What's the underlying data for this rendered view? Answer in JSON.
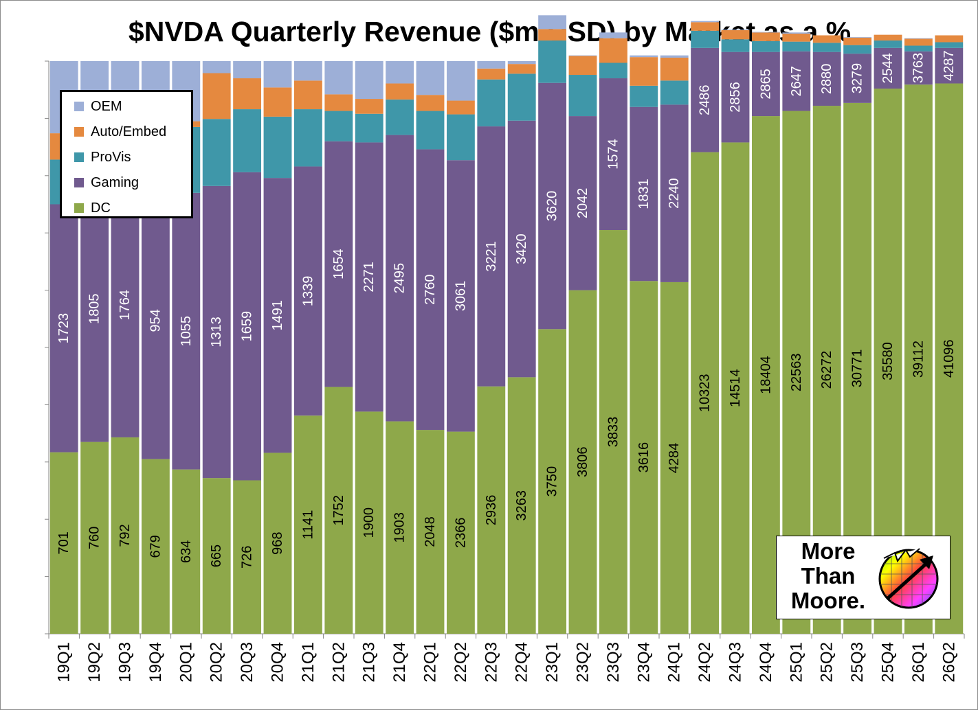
{
  "chart_data": {
    "type": "bar",
    "stacked": true,
    "normalized_percent": true,
    "title": "$NVDA Quarterly Revenue ($m USD) by Market as a %",
    "xlabel": "",
    "ylabel": "",
    "ylim": [
      0,
      100
    ],
    "grid": false,
    "legend_position": "top-left",
    "categories": [
      "19Q1",
      "19Q2",
      "19Q3",
      "19Q4",
      "20Q1",
      "20Q2",
      "20Q3",
      "20Q4",
      "21Q1",
      "21Q2",
      "21Q3",
      "21Q4",
      "22Q1",
      "22Q2",
      "22Q3",
      "22Q4",
      "23Q1",
      "23Q2",
      "23Q3",
      "23Q4",
      "24Q1",
      "24Q2",
      "24Q3",
      "24Q4",
      "25Q1",
      "25Q2",
      "25Q3",
      "25Q4",
      "26Q1",
      "26Q2"
    ],
    "series": [
      {
        "name": "DC",
        "color": "#8ea84a",
        "label_values": [
          701,
          760,
          792,
          679,
          634,
          665,
          726,
          968,
          1141,
          1752,
          1900,
          1903,
          2048,
          2366,
          2936,
          3263,
          3750,
          3806,
          3833,
          3616,
          4284,
          10323,
          14514,
          18404,
          22563,
          26272,
          30771,
          35580,
          39112,
          41096
        ],
        "percent": [
          31.7,
          33.5,
          34.3,
          30.5,
          28.7,
          27.2,
          26.8,
          31.6,
          38.1,
          43.1,
          38.8,
          37.1,
          35.6,
          35.3,
          43.2,
          44.8,
          53.2,
          60.0,
          70.5,
          61.6,
          61.4,
          84.1,
          85.8,
          90.4,
          91.3,
          92.2,
          92.7,
          95.2,
          95.9,
          96.1
        ]
      },
      {
        "name": "Gaming",
        "color": "#705a8e",
        "label_values": [
          1723,
          1805,
          1764,
          954,
          1055,
          1313,
          1659,
          1491,
          1339,
          1654,
          2271,
          2495,
          2760,
          3061,
          3221,
          3420,
          3620,
          2042,
          1574,
          1831,
          2240,
          2486,
          2856,
          2865,
          2647,
          2880,
          3279,
          2544,
          3763,
          4287
        ],
        "percent": [
          43.3,
          46.5,
          46.2,
          48.4,
          48.3,
          51.0,
          53.8,
          48.0,
          43.5,
          42.9,
          47.0,
          50.0,
          49.0,
          47.4,
          45.4,
          44.8,
          43.0,
          30.4,
          26.5,
          30.4,
          31.0,
          18.2,
          15.8,
          11.2,
          10.4,
          9.4,
          8.6,
          7.1,
          5.8,
          6.2
        ]
      },
      {
        "name": "ProVis",
        "color": "#3f97a9",
        "label_values": [],
        "percent": [
          7.8,
          8.3,
          8.9,
          8.3,
          11.5,
          11.7,
          11.0,
          10.7,
          10.0,
          5.3,
          5.0,
          6.2,
          6.7,
          8.0,
          8.2,
          8.2,
          7.4,
          7.2,
          2.7,
          3.7,
          4.2,
          3.0,
          2.2,
          1.9,
          1.7,
          1.6,
          1.5,
          1.3,
          1.0,
          1.0
        ]
      },
      {
        "name": "Auto/Embed",
        "color": "#e5893f",
        "label_values": [],
        "percent": [
          4.6,
          2.0,
          0.7,
          0.4,
          1.0,
          8.0,
          5.4,
          5.1,
          5.0,
          2.9,
          2.6,
          2.8,
          2.8,
          2.4,
          1.9,
          1.7,
          2.0,
          3.3,
          4.3,
          5.0,
          4.0,
          1.5,
          1.6,
          1.5,
          1.4,
          1.3,
          1.3,
          1.0,
          1.2,
          1.2
        ]
      },
      {
        "name": "OEM",
        "color": "#9dafd7",
        "label_values": [],
        "percent": [
          12.6,
          9.7,
          9.9,
          12.4,
          10.5,
          2.1,
          3.0,
          4.6,
          3.4,
          5.8,
          6.6,
          3.9,
          5.9,
          6.9,
          1.3,
          0.5,
          2.4,
          0.1,
          1.0,
          0.3,
          0.4,
          0.2,
          0.1,
          0.1,
          0.2,
          0.0,
          0.1,
          0.0,
          0.1,
          0.0
        ]
      }
    ]
  },
  "legend": {
    "items": [
      {
        "name": "OEM",
        "color": "#9dafd7"
      },
      {
        "name": "Auto/Embed",
        "color": "#e5893f"
      },
      {
        "name": "ProVis",
        "color": "#3f97a9"
      },
      {
        "name": "Gaming",
        "color": "#705a8e"
      },
      {
        "name": "DC",
        "color": "#8ea84a"
      }
    ]
  },
  "logo": {
    "line1": "More",
    "line2": "Than",
    "line3": "Moore.",
    "icon": "rainbow-chip-arrow-icon"
  }
}
